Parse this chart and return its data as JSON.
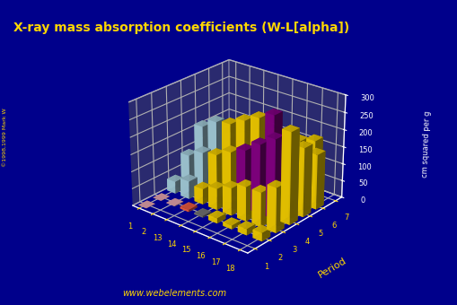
{
  "title": "X-ray mass absorption coefficients (W-L[alpha])",
  "zlabel": "cm squared per g",
  "ylabel_period": "Period",
  "background_color": "#00008B",
  "floor_color": "#555555",
  "title_color": "#FFD700",
  "axis_label_color": "#FFD700",
  "tick_color": "#FFD700",
  "zlim": [
    0,
    300
  ],
  "zticks": [
    0,
    50,
    100,
    150,
    200,
    250,
    300
  ],
  "groups": [
    1,
    2,
    13,
    14,
    15,
    16,
    17,
    18
  ],
  "periods": [
    1,
    2,
    3,
    4,
    5,
    6,
    7
  ],
  "bar_data": [
    {
      "period": 1,
      "group": 1,
      "value": 0.37,
      "color": "#FFB6C1"
    },
    {
      "period": 2,
      "group": 1,
      "value": 0.37,
      "color": "#FFB6C1"
    },
    {
      "period": 2,
      "group": 2,
      "value": 1.5,
      "color": "#FFB6C1"
    },
    {
      "period": 2,
      "group": 13,
      "value": 6.0,
      "color": "#FF6347"
    },
    {
      "period": 2,
      "group": 14,
      "value": 4.5,
      "color": "#808080"
    },
    {
      "period": 2,
      "group": 15,
      "value": 15.0,
      "color": "#FFD700"
    },
    {
      "period": 2,
      "group": 16,
      "value": 11.0,
      "color": "#FFD700"
    },
    {
      "period": 2,
      "group": 17,
      "value": 18.0,
      "color": "#FFD700"
    },
    {
      "period": 2,
      "group": 18,
      "value": 24.0,
      "color": "#FFD700"
    },
    {
      "period": 3,
      "group": 1,
      "value": 35.0,
      "color": "#ADD8E6"
    },
    {
      "period": 3,
      "group": 2,
      "value": 52.0,
      "color": "#ADD8E6"
    },
    {
      "period": 3,
      "group": 13,
      "value": 45.0,
      "color": "#FFD700"
    },
    {
      "period": 3,
      "group": 14,
      "value": 62.0,
      "color": "#FFD700"
    },
    {
      "period": 3,
      "group": 15,
      "value": 80.0,
      "color": "#FFD700"
    },
    {
      "period": 3,
      "group": 16,
      "value": 100.0,
      "color": "#FFD700"
    },
    {
      "period": 3,
      "group": 17,
      "value": 100.0,
      "color": "#FFD700"
    },
    {
      "period": 3,
      "group": 18,
      "value": 130.0,
      "color": "#FFD700"
    },
    {
      "period": 4,
      "group": 1,
      "value": 93.0,
      "color": "#ADD8E6"
    },
    {
      "period": 4,
      "group": 2,
      "value": 116.0,
      "color": "#ADD8E6"
    },
    {
      "period": 4,
      "group": 13,
      "value": 125.0,
      "color": "#FFD700"
    },
    {
      "period": 4,
      "group": 14,
      "value": 148.0,
      "color": "#FFD700"
    },
    {
      "period": 4,
      "group": 15,
      "value": 168.0,
      "color": "#8B008B"
    },
    {
      "period": 4,
      "group": 16,
      "value": 200.0,
      "color": "#8B008B"
    },
    {
      "period": 4,
      "group": 17,
      "value": 230.0,
      "color": "#8B008B"
    },
    {
      "period": 4,
      "group": 18,
      "value": 265.0,
      "color": "#FFD700"
    },
    {
      "period": 5,
      "group": 1,
      "value": 160.0,
      "color": "#ADD8E6"
    },
    {
      "period": 5,
      "group": 2,
      "value": 188.0,
      "color": "#ADD8E6"
    },
    {
      "period": 5,
      "group": 13,
      "value": 196.0,
      "color": "#FFD700"
    },
    {
      "period": 5,
      "group": 14,
      "value": 220.0,
      "color": "#FFD700"
    },
    {
      "period": 5,
      "group": 15,
      "value": 242.0,
      "color": "#FFD700"
    },
    {
      "period": 5,
      "group": 16,
      "value": 264.0,
      "color": "#8B008B"
    },
    {
      "period": 5,
      "group": 17,
      "value": 30.0,
      "color": "#008000"
    },
    {
      "period": 5,
      "group": 18,
      "value": 200.0,
      "color": "#FFD700"
    },
    {
      "period": 6,
      "group": 1,
      "value": 110.0,
      "color": "#ADD8E6"
    },
    {
      "period": 6,
      "group": 2,
      "value": 120.0,
      "color": "#ADD8E6"
    },
    {
      "period": 6,
      "group": 13,
      "value": 135.0,
      "color": "#FFD700"
    },
    {
      "period": 6,
      "group": 14,
      "value": 155.0,
      "color": "#FFD700"
    },
    {
      "period": 6,
      "group": 15,
      "value": 175.0,
      "color": "#FFD700"
    },
    {
      "period": 6,
      "group": 16,
      "value": 190.0,
      "color": "#FFD700"
    },
    {
      "period": 6,
      "group": 17,
      "value": 145.0,
      "color": "#FFD700"
    },
    {
      "period": 6,
      "group": 18,
      "value": 160.0,
      "color": "#FFD700"
    },
    {
      "period": 7,
      "group": 1,
      "value": 5.0,
      "color": "#FFD700"
    },
    {
      "period": 7,
      "group": 2,
      "value": 85.0,
      "color": "#ADD8E6"
    },
    {
      "period": 7,
      "group": 13,
      "value": 100.0,
      "color": "#FFD700"
    },
    {
      "period": 7,
      "group": 14,
      "value": 118.0,
      "color": "#FFD700"
    },
    {
      "period": 7,
      "group": 15,
      "value": 135.0,
      "color": "#FFD700"
    },
    {
      "period": 7,
      "group": 16,
      "value": 150.0,
      "color": "#FFD700"
    },
    {
      "period": 7,
      "group": 17,
      "value": 165.0,
      "color": "#FFD700"
    }
  ],
  "url_text": "www.webelements.com",
  "copyright_text": "©1998,1999 Mark W"
}
